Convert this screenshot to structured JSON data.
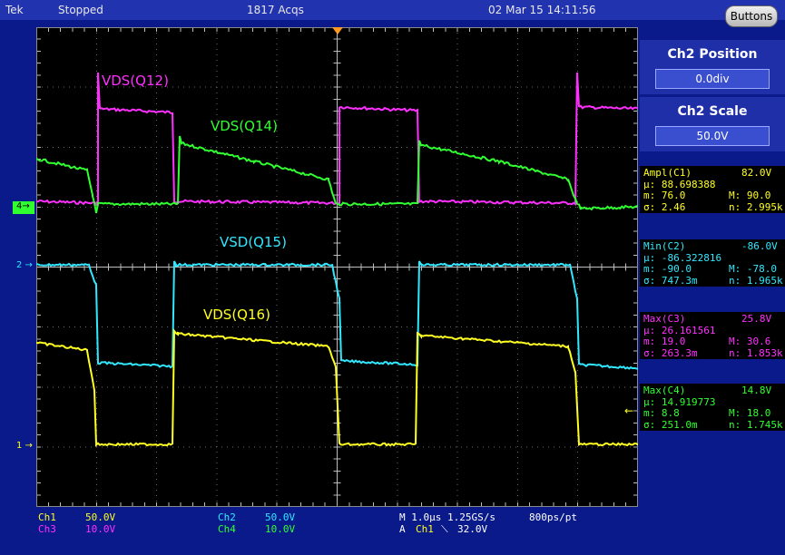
{
  "topbar": {
    "brand": "Tek",
    "state": "Stopped",
    "acqs": "1817 Acqs",
    "datetime": "02 Mar 15 14:11:56",
    "buttons_label": "Buttons"
  },
  "panel": {
    "ch2_position": {
      "title": "Ch2 Position",
      "value": "0.0div"
    },
    "ch2_scale": {
      "title": "Ch2 Scale",
      "value": "50.0V"
    }
  },
  "measurements": [
    {
      "name": "Ampl(C1)",
      "value": "82.0V",
      "mu": "µ: 88.698388",
      "m": "m: 76.0",
      "M": "M: 90.0",
      "sigma": "σ: 2.46",
      "n": "n: 2.995k",
      "color": "#ffff20"
    },
    {
      "name": "Min(C2)",
      "value": "-86.0V",
      "mu": "µ: -86.322816",
      "m": "m: -90.0",
      "M": "M: -78.0",
      "sigma": "σ: 747.3m",
      "n": "n: 1.965k",
      "color": "#30e8ff"
    },
    {
      "name": "Max(C3)",
      "value": "25.8V",
      "mu": "µ: 26.161561",
      "m": "m: 19.0",
      "M": "M: 30.6",
      "sigma": "σ: 263.3m",
      "n": "n: 1.853k",
      "color": "#ff30ff"
    },
    {
      "name": "Max(C4)",
      "value": "14.8V",
      "mu": "µ: 14.919773",
      "m": "m: 8.8",
      "M": "M: 18.0",
      "sigma": "σ: 251.0m",
      "n": "n: 1.745k",
      "color": "#30ff30"
    }
  ],
  "traces": {
    "vds_q12": {
      "label": "VDS(Q12)",
      "color": "#ff30ff"
    },
    "vds_q14": {
      "label": "VDS(Q14)",
      "color": "#30ff30"
    },
    "vsd_q15": {
      "label": "VSD(Q15)",
      "color": "#30e8ff"
    },
    "vds_q16": {
      "label": "VDS(Q16)",
      "color": "#ffff20"
    }
  },
  "markers": {
    "ch4": "4",
    "ch2": "2",
    "ch1": "1"
  },
  "bottom": {
    "ch1_name": "Ch1",
    "ch1_scale": "50.0V",
    "ch3_name": "Ch3",
    "ch3_scale": "10.0V",
    "ch2_name": "Ch2",
    "ch2_scale": "50.0V",
    "ch4_name": "Ch4",
    "ch4_scale": "10.0V",
    "timebase": "M 1.0µs 1.25GS/s",
    "res": "800ps/pt",
    "trig_prefix": "A",
    "trig_src": "Ch1",
    "trig_slope": "⟍",
    "trig_level": "32.0V"
  }
}
